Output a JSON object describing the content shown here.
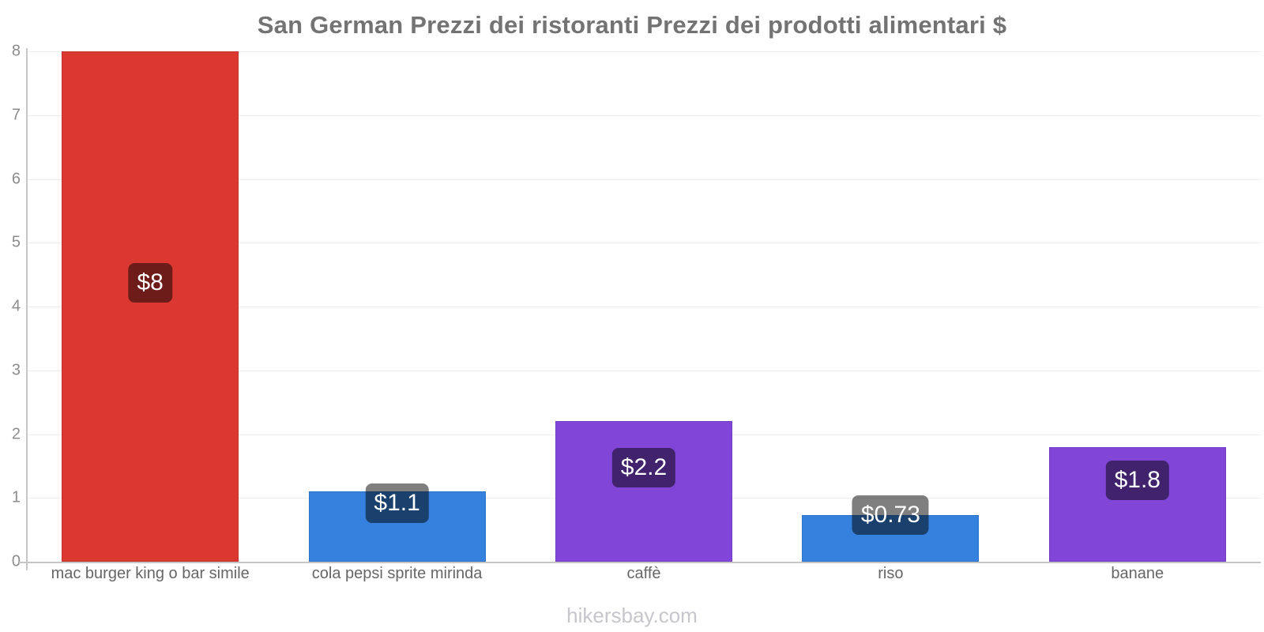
{
  "page": {
    "footer": "hikersbay.com"
  },
  "chart_data": {
    "type": "bar",
    "title": "San German Prezzi dei ristoranti Prezzi dei prodotti alimentari $",
    "categories": [
      "mac burger king o bar simile",
      "cola pepsi sprite mirinda",
      "caffè",
      "riso",
      "banane"
    ],
    "values": [
      8,
      1.1,
      2.2,
      0.73,
      1.8
    ],
    "value_labels": [
      "$8",
      "$1.1",
      "$2.2",
      "$0.73",
      "$1.8"
    ],
    "bar_colors": [
      "#dc3832",
      "#3581dd",
      "#8146d8",
      "#3581dd",
      "#8146d8"
    ],
    "ylim": [
      0,
      8
    ],
    "yticks": [
      0,
      1,
      2,
      3,
      4,
      5,
      6,
      7,
      8
    ],
    "grid": true,
    "legend": "none",
    "currency": "$",
    "axis_color": "#c6c6c6",
    "grid_color": "#ededed",
    "badge_bg": "rgba(0,0,0,0.5)",
    "title_color": "#737373",
    "tick_label_color": "#8c8c8c",
    "category_label_color": "#666666",
    "footer_color": "#c6c6cc"
  }
}
